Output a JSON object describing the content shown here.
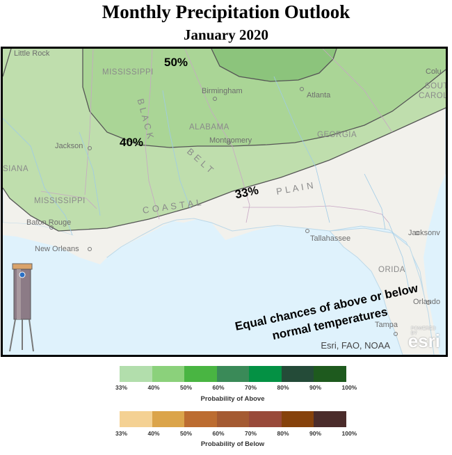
{
  "title": "Monthly Precipitation Outlook",
  "subtitle": "January 2020",
  "map": {
    "contour_labels": [
      "50%",
      "40%",
      "33%"
    ],
    "annotation_line1": "Equal chances of above or below",
    "annotation_line2": "normal temperatures",
    "attribution": "Esri, FAO, NOAA",
    "esri_powered": "POWERED BY",
    "esri_logo": "esri",
    "places": {
      "little_rock": "Little Rock",
      "mississippi_n": "MISSISSIPPI",
      "mississippi_s": "MISSISSIPPI",
      "birmingham": "Birmingham",
      "atlanta": "Atlanta",
      "columbia": "Colu",
      "south_carolina_1": "SOUT",
      "south_carolina_2": "CAROL",
      "alabama": "ALABAMA",
      "montgomery": "Montgomery",
      "georgia": "GEORGIA",
      "jackson": "Jackson",
      "louisiana": "SIANA",
      "black": "B L A C K",
      "belt": "B E L T",
      "coastal": "C O A S T A L",
      "plain": "P L A I N",
      "baton_rouge": "Baton Rouge",
      "new_orleans": "New Orleans",
      "tallahassee": "Tallahassee",
      "jacksonville": "Jacksonv",
      "florida": "ORIDA",
      "orlando": "Orlando",
      "tampa": "Tampa"
    },
    "colors": {
      "ocean": "#dff2fc",
      "land": "#f2f1ec",
      "p33": "#bcdcaa",
      "p40": "#aad596",
      "p50": "#8cc47c",
      "contour": "#555555"
    },
    "icon": "rain-gauge-icon"
  },
  "legend_above": {
    "colors": [
      "#b2deac",
      "#8bd17b",
      "#49b542",
      "#3a8a58",
      "#049144",
      "#244b38",
      "#1e5a1e"
    ],
    "ticks": [
      "33%",
      "40%",
      "50%",
      "60%",
      "70%",
      "80%",
      "90%",
      "100%"
    ],
    "title": "Probability of Above"
  },
  "legend_below": {
    "colors": [
      "#f4d193",
      "#dba44a",
      "#bc6c30",
      "#a45a32",
      "#994a3a",
      "#86420c",
      "#4b2c2b"
    ],
    "ticks": [
      "33%",
      "40%",
      "50%",
      "60%",
      "70%",
      "80%",
      "90%",
      "100%"
    ],
    "title": "Probability of Below"
  }
}
